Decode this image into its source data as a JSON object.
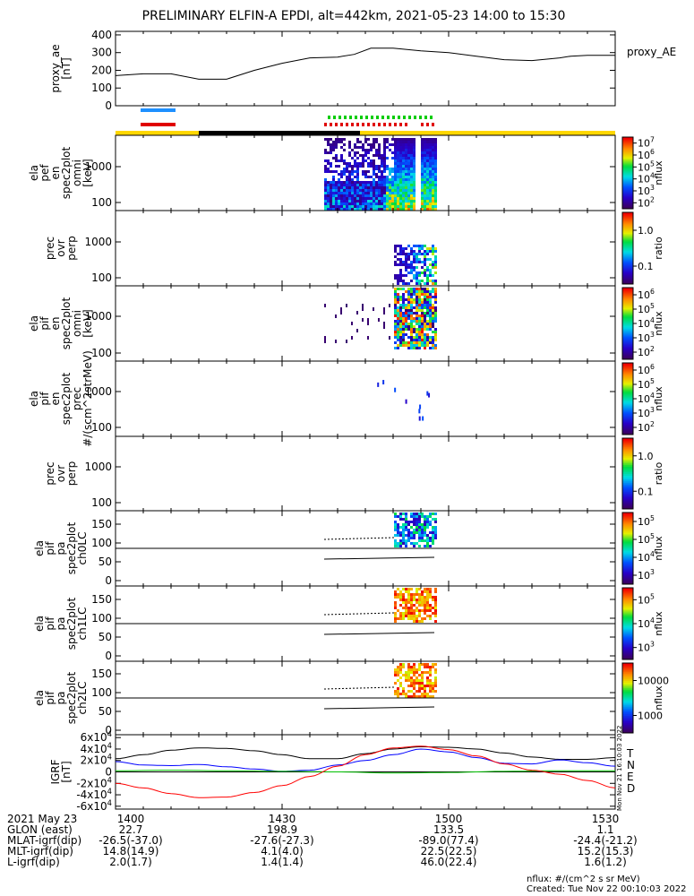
{
  "title": "PRELIMINARY ELFIN-A EPDI, alt=442km, 2021-05-23 14:00 to 15:30",
  "chart_data": [
    {
      "type": "line",
      "panel": "proxy_ae",
      "ylabel": [
        "proxy_ae",
        "[nT]"
      ],
      "legend": "proxy_AE",
      "y_ticks": [
        "0",
        "100",
        "200",
        "300",
        "400"
      ],
      "ylim": [
        0,
        420
      ],
      "xlim": [
        0,
        90
      ],
      "x": [
        0,
        5,
        10,
        15,
        20,
        25,
        30,
        35,
        40,
        43,
        46,
        50,
        55,
        60,
        65,
        70,
        75,
        80,
        82,
        85,
        90
      ],
      "y": [
        170,
        180,
        180,
        150,
        150,
        200,
        240,
        270,
        275,
        290,
        325,
        325,
        310,
        300,
        280,
        260,
        255,
        270,
        280,
        285,
        285
      ]
    },
    {
      "type": "heatmap",
      "panel": "ela_pef_en_spec2plot_omni",
      "ylabel": [
        "ela",
        "pef",
        "en",
        "spec2plot",
        "omni",
        "[keV]"
      ],
      "y_ticks": [
        "100",
        "1000"
      ],
      "colorbar_label": "nflux",
      "colorbar_ticks": [
        "10^2",
        "10^3",
        "10^4",
        "10^5",
        "10^6",
        "10^7"
      ],
      "scale": "log"
    },
    {
      "type": "heatmap",
      "panel": "prec_ovr_perp",
      "ylabel": [
        "prec",
        "ovr",
        "perp"
      ],
      "y_ticks": [
        "100",
        "1000"
      ],
      "colorbar_label": "ratio",
      "colorbar_ticks": [
        "0.1",
        "1.0"
      ]
    },
    {
      "type": "heatmap",
      "panel": "ela_pif_en_spec2plot_omni",
      "ylabel": [
        "ela",
        "pif",
        "en",
        "spec2plot",
        "omni",
        "[keV]"
      ],
      "y_ticks": [
        "100",
        "1000"
      ],
      "colorbar_label": "nflux",
      "colorbar_ticks": [
        "10^2",
        "10^3",
        "10^4",
        "10^5",
        "10^6"
      ]
    },
    {
      "type": "heatmap",
      "panel": "ela_pif_en_spec2plot_prec",
      "ylabel": [
        "ela",
        "pif",
        "en",
        "spec2plot",
        "prec",
        "#/(scm^2strMeV)"
      ],
      "y_ticks": [
        "100",
        "1000"
      ],
      "colorbar_label": "nflux",
      "colorbar_ticks": [
        "10^2",
        "10^3",
        "10^4",
        "10^5",
        "10^6"
      ]
    },
    {
      "type": "heatmap",
      "panel": "prec_ovr_perp_2",
      "ylabel": [
        "prec",
        "ovr",
        "perp"
      ],
      "y_ticks": [
        "100",
        "1000"
      ],
      "colorbar_label": "ratio",
      "colorbar_ticks": [
        "0.1",
        "1.0"
      ]
    },
    {
      "type": "heatmap",
      "panel": "ela_pif_pa_spec2plot_ch0LC",
      "ylabel": [
        "ela",
        "pif",
        "pa",
        "spec2plot",
        "ch0LC"
      ],
      "y_ticks": [
        "0",
        "50",
        "100",
        "150"
      ],
      "colorbar_label": "nflux",
      "colorbar_ticks": [
        "10^3",
        "10^4",
        "10^5",
        "10^5"
      ]
    },
    {
      "type": "heatmap",
      "panel": "ela_pif_pa_spec2plot_ch1LC",
      "ylabel": [
        "ela",
        "pif",
        "pa",
        "spec2plot",
        "ch1LC"
      ],
      "y_ticks": [
        "0",
        "50",
        "100",
        "150"
      ],
      "colorbar_label": "nflux",
      "colorbar_ticks": [
        "10^3",
        "10^4",
        "10^5"
      ]
    },
    {
      "type": "heatmap",
      "panel": "ela_pif_pa_spec2plot_ch2LC",
      "ylabel": [
        "ela",
        "pif",
        "pa",
        "spec2plot",
        "ch2LC"
      ],
      "y_ticks": [
        "0",
        "50",
        "100",
        "150"
      ],
      "colorbar_label": "nflux",
      "colorbar_ticks": [
        "1000",
        "10000"
      ]
    },
    {
      "type": "line",
      "panel": "IGRF",
      "ylabel": [
        "IGRF",
        "[nT]"
      ],
      "y_ticks": [
        "-6x10^4",
        "-4x10^4",
        "-2x10^4",
        "0",
        "2x10^4",
        "4x10^4",
        "6x10^4"
      ],
      "ylim": [
        -65000,
        65000
      ],
      "xlim": [
        0,
        90
      ],
      "legend": [
        "T",
        "N",
        "E",
        "D"
      ],
      "colors": [
        "#000000",
        "#0000ff",
        "#00c000",
        "#ff0000"
      ],
      "series": [
        {
          "name": "T",
          "x": [
            0,
            5,
            10,
            15,
            20,
            25,
            30,
            35,
            40,
            45,
            50,
            55,
            60,
            65,
            70,
            75,
            80,
            85,
            90
          ],
          "y": [
            23000,
            30000,
            38000,
            42000,
            41000,
            37000,
            30000,
            23000,
            23000,
            32000,
            40000,
            44000,
            43000,
            40000,
            33000,
            26000,
            22000,
            22000,
            25000
          ]
        },
        {
          "name": "N",
          "x": [
            0,
            5,
            10,
            15,
            20,
            25,
            30,
            35,
            40,
            45,
            50,
            55,
            60,
            65,
            70,
            75,
            80,
            85,
            90
          ],
          "y": [
            18000,
            12000,
            11000,
            13000,
            9000,
            5000,
            1000,
            3000,
            12000,
            20000,
            30000,
            40000,
            35000,
            25000,
            15000,
            14000,
            21000,
            16000,
            10000
          ]
        },
        {
          "name": "E",
          "x": [
            0,
            10,
            20,
            30,
            40,
            50,
            60,
            70,
            80,
            90
          ],
          "y": [
            2000,
            3000,
            2000,
            1000,
            0,
            -2000,
            -1000,
            1000,
            2000,
            2000
          ]
        },
        {
          "name": "D",
          "x": [
            0,
            5,
            10,
            15,
            20,
            25,
            30,
            35,
            40,
            45,
            50,
            55,
            60,
            65,
            70,
            75,
            80,
            85,
            90
          ],
          "y": [
            -20000,
            -28000,
            -38000,
            -45000,
            -44000,
            -36000,
            -24000,
            -8000,
            10000,
            30000,
            42000,
            45000,
            39000,
            28000,
            14000,
            3000,
            -4000,
            -15000,
            -28000
          ]
        }
      ]
    }
  ],
  "x_axis": {
    "rows": [
      {
        "label": "2021 May 23",
        "values": [
          "1400",
          "1430",
          "1500",
          "1530"
        ]
      },
      {
        "label": "GLON (east)",
        "values": [
          "22.7",
          "198.9",
          "133.5",
          "1.1"
        ]
      },
      {
        "label": "MLAT-igrf(dip)",
        "values": [
          "-26.5(-37.0)",
          "-27.6(-27.3)",
          "-89.0(77.4)",
          "-24.4(-21.2)"
        ]
      },
      {
        "label": "MLT-igrf(dip)",
        "values": [
          "14.8(14.9)",
          "4.1(4.0)",
          "22.5(22.5)",
          "15.2(15.3)"
        ]
      },
      {
        "label": "L-igrf(dip)",
        "values": [
          "2.0(1.7)",
          "1.4(1.4)",
          "46.0(22.4)",
          "1.6(1.2)"
        ]
      }
    ]
  },
  "footer": {
    "units": "nflux: #/(cm^2 s sr MeV)",
    "created": "Created: Tue Nov 22 00:10:03 2022",
    "side_stamp": "Mon Nov 21 16:10:03 2022"
  }
}
